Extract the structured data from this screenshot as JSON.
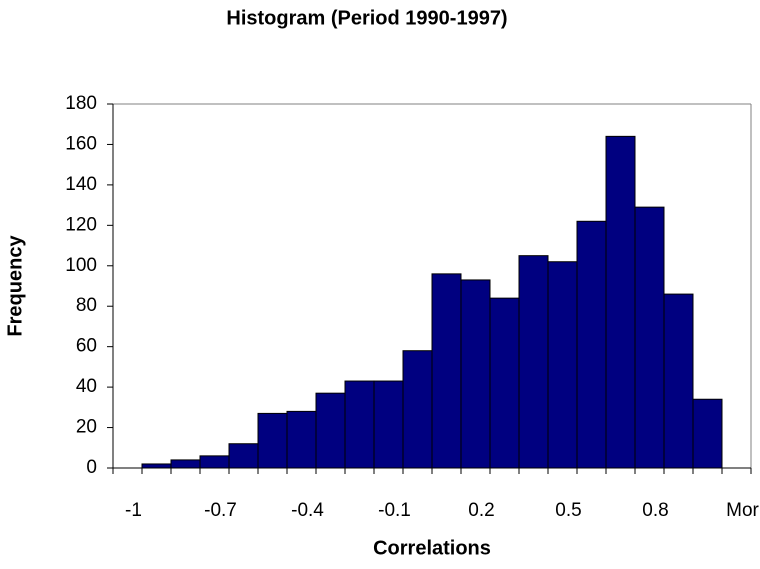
{
  "chart_data": {
    "type": "bar",
    "title": "Histogram (Period 1990-1997)",
    "x_label": "Correlations",
    "y_label": "Frequency",
    "categories": [
      "-1",
      null,
      null,
      "-0.7",
      null,
      null,
      "-0.4",
      null,
      null,
      "-0.1",
      null,
      null,
      "0.2",
      null,
      null,
      "0.5",
      null,
      null,
      "0.8",
      null,
      null,
      "Mor"
    ],
    "values": [
      0,
      2,
      4,
      6,
      12,
      27,
      28,
      37,
      43,
      43,
      58,
      96,
      93,
      84,
      105,
      102,
      122,
      164,
      129,
      86,
      34,
      0
    ],
    "color": "#000080",
    "ylim": [
      0,
      180
    ],
    "yticks": [
      0,
      20,
      40,
      60,
      80,
      100,
      120,
      140,
      160,
      180
    ],
    "grid": false
  }
}
